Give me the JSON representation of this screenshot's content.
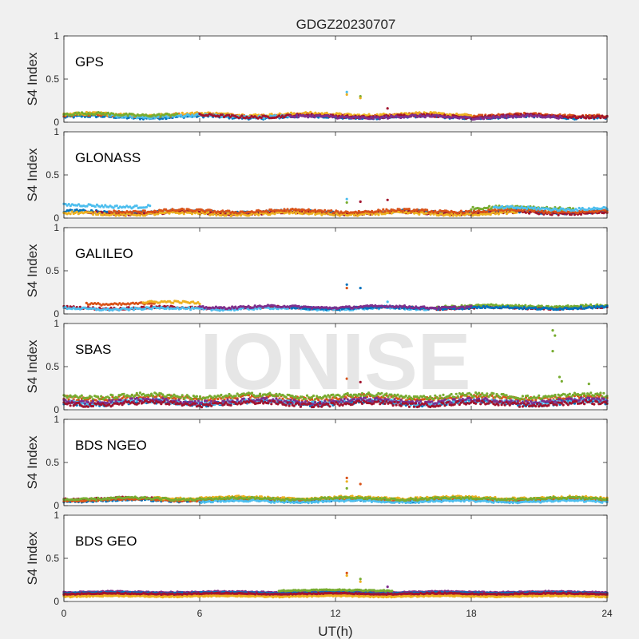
{
  "chart_data": {
    "type": "scatter",
    "title": "GDGZ20230707",
    "xlabel": "UT(h)",
    "ylabel": "S4 Index",
    "xlim": [
      0,
      24
    ],
    "ylim": [
      0,
      1
    ],
    "xticks": [
      "0",
      "6",
      "12",
      "18",
      "24"
    ],
    "yticks": [
      "0",
      "0.5",
      "1"
    ],
    "watermark": "IONISE",
    "series_colors": [
      "#0072BD",
      "#D95319",
      "#EDB120",
      "#7E2F8E",
      "#77AC30",
      "#4DBEEE",
      "#A2142F"
    ],
    "panels": [
      {
        "label": "GPS",
        "baseline": 0.07,
        "spread": 0.03,
        "tracks": [
          {
            "color": "#0072BD",
            "x_start": 0.0,
            "x_end": 24.0,
            "level": 0.06
          },
          {
            "color": "#D95319",
            "x_start": 0.0,
            "x_end": 24.0,
            "level": 0.08
          },
          {
            "color": "#EDB120",
            "x_start": 0.0,
            "x_end": 18.0,
            "level": 0.09
          },
          {
            "color": "#4DBEEE",
            "x_start": 2.0,
            "x_end": 10.0,
            "level": 0.07
          },
          {
            "color": "#77AC30",
            "x_start": 0.0,
            "x_end": 5.0,
            "level": 0.09
          },
          {
            "color": "#A2142F",
            "x_start": 6.0,
            "x_end": 24.0,
            "level": 0.07
          },
          {
            "color": "#7E2F8E",
            "x_start": 10.0,
            "x_end": 22.0,
            "level": 0.06
          }
        ],
        "spikes": [
          {
            "x": 12.5,
            "y": 0.35,
            "color": "#4DBEEE"
          },
          {
            "x": 12.5,
            "y": 0.32,
            "color": "#EDB120"
          },
          {
            "x": 13.1,
            "y": 0.3,
            "color": "#77AC30"
          },
          {
            "x": 13.1,
            "y": 0.28,
            "color": "#EDB120"
          },
          {
            "x": 14.3,
            "y": 0.16,
            "color": "#A2142F"
          }
        ]
      },
      {
        "label": "GLONASS",
        "baseline": 0.08,
        "spread": 0.03,
        "tracks": [
          {
            "color": "#4DBEEE",
            "x_start": 0.0,
            "x_end": 3.8,
            "level": 0.14
          },
          {
            "color": "#0072BD",
            "x_start": 0.0,
            "x_end": 24.0,
            "level": 0.07
          },
          {
            "color": "#A2142F",
            "x_start": 1.0,
            "x_end": 24.0,
            "level": 0.06
          },
          {
            "color": "#EDB120",
            "x_start": 0.0,
            "x_end": 20.0,
            "level": 0.05
          },
          {
            "color": "#D95319",
            "x_start": 2.0,
            "x_end": 24.0,
            "level": 0.08
          },
          {
            "color": "#77AC30",
            "x_start": 18.0,
            "x_end": 22.5,
            "level": 0.12
          },
          {
            "color": "#4DBEEE",
            "x_start": 19.0,
            "x_end": 24.0,
            "level": 0.11
          }
        ],
        "spikes": [
          {
            "x": 12.5,
            "y": 0.22,
            "color": "#4DBEEE"
          },
          {
            "x": 12.5,
            "y": 0.18,
            "color": "#77AC30"
          },
          {
            "x": 13.1,
            "y": 0.19,
            "color": "#A2142F"
          },
          {
            "x": 14.3,
            "y": 0.21,
            "color": "#A2142F"
          }
        ]
      },
      {
        "label": "GALILEO",
        "baseline": 0.08,
        "spread": 0.025,
        "tracks": [
          {
            "color": "#D95319",
            "x_start": 1.0,
            "x_end": 4.0,
            "level": 0.12
          },
          {
            "color": "#EDB120",
            "x_start": 3.5,
            "x_end": 6.0,
            "level": 0.13
          },
          {
            "color": "#A2142F",
            "x_start": 0.0,
            "x_end": 24.0,
            "level": 0.07
          },
          {
            "color": "#4DBEEE",
            "x_start": 0.0,
            "x_end": 16.0,
            "level": 0.06
          },
          {
            "color": "#77AC30",
            "x_start": 16.5,
            "x_end": 24.0,
            "level": 0.09
          },
          {
            "color": "#0072BD",
            "x_start": 10.0,
            "x_end": 24.0,
            "level": 0.07
          },
          {
            "color": "#7E2F8E",
            "x_start": 6.0,
            "x_end": 18.0,
            "level": 0.08
          }
        ],
        "spikes": [
          {
            "x": 12.5,
            "y": 0.34,
            "color": "#0072BD"
          },
          {
            "x": 12.5,
            "y": 0.3,
            "color": "#D95319"
          },
          {
            "x": 13.1,
            "y": 0.3,
            "color": "#0072BD"
          },
          {
            "x": 14.3,
            "y": 0.14,
            "color": "#4DBEEE"
          }
        ]
      },
      {
        "label": "SBAS",
        "baseline": 0.12,
        "spread": 0.045,
        "tracks": [
          {
            "color": "#D95319",
            "x_start": 0.0,
            "x_end": 24.0,
            "level": 0.14
          },
          {
            "color": "#77AC30",
            "x_start": 0.0,
            "x_end": 24.0,
            "level": 0.16
          },
          {
            "color": "#0072BD",
            "x_start": 0.0,
            "x_end": 24.0,
            "level": 0.08
          },
          {
            "color": "#4DBEEE",
            "x_start": 0.0,
            "x_end": 24.0,
            "level": 0.09
          },
          {
            "color": "#7E2F8E",
            "x_start": 0.0,
            "x_end": 24.0,
            "level": 0.1
          },
          {
            "color": "#A2142F",
            "x_start": 0.0,
            "x_end": 24.0,
            "level": 0.07
          }
        ],
        "spikes": [
          {
            "x": 21.6,
            "y": 0.92,
            "color": "#77AC30"
          },
          {
            "x": 21.7,
            "y": 0.86,
            "color": "#77AC30"
          },
          {
            "x": 21.6,
            "y": 0.68,
            "color": "#77AC30"
          },
          {
            "x": 21.9,
            "y": 0.38,
            "color": "#77AC30"
          },
          {
            "x": 22.0,
            "y": 0.33,
            "color": "#77AC30"
          },
          {
            "x": 23.2,
            "y": 0.3,
            "color": "#77AC30"
          },
          {
            "x": 12.5,
            "y": 0.36,
            "color": "#D95319"
          },
          {
            "x": 13.1,
            "y": 0.32,
            "color": "#A2142F"
          }
        ]
      },
      {
        "label": "BDS NGEO",
        "baseline": 0.07,
        "spread": 0.025,
        "tracks": [
          {
            "color": "#0072BD",
            "x_start": 0.0,
            "x_end": 24.0,
            "level": 0.06
          },
          {
            "color": "#A2142F",
            "x_start": 0.0,
            "x_end": 10.0,
            "level": 0.08
          },
          {
            "color": "#D95319",
            "x_start": 0.0,
            "x_end": 24.0,
            "level": 0.07
          },
          {
            "color": "#EDB120",
            "x_start": 4.0,
            "x_end": 24.0,
            "level": 0.09
          },
          {
            "color": "#4DBEEE",
            "x_start": 6.0,
            "x_end": 24.0,
            "level": 0.05
          },
          {
            "color": "#77AC30",
            "x_start": 0.0,
            "x_end": 24.0,
            "level": 0.08
          }
        ],
        "spikes": [
          {
            "x": 12.5,
            "y": 0.32,
            "color": "#D95319"
          },
          {
            "x": 12.5,
            "y": 0.28,
            "color": "#EDB120"
          },
          {
            "x": 13.1,
            "y": 0.25,
            "color": "#D95319"
          },
          {
            "x": 12.5,
            "y": 0.2,
            "color": "#77AC30"
          }
        ]
      },
      {
        "label": "BDS GEO",
        "baseline": 0.1,
        "spread": 0.012,
        "tracks": [
          {
            "color": "#7E2F8E",
            "x_start": 0.0,
            "x_end": 24.0,
            "level": 0.11
          },
          {
            "color": "#0072BD",
            "x_start": 0.0,
            "x_end": 24.0,
            "level": 0.1
          },
          {
            "color": "#D95319",
            "x_start": 0.0,
            "x_end": 24.0,
            "level": 0.08
          },
          {
            "color": "#EDB120",
            "x_start": 0.0,
            "x_end": 24.0,
            "level": 0.06
          },
          {
            "color": "#77AC30",
            "x_start": 9.5,
            "x_end": 14.5,
            "level": 0.13
          },
          {
            "color": "#A2142F",
            "x_start": 0.0,
            "x_end": 24.0,
            "level": 0.09
          }
        ],
        "spikes": [
          {
            "x": 12.5,
            "y": 0.33,
            "color": "#D95319"
          },
          {
            "x": 12.5,
            "y": 0.3,
            "color": "#EDB120"
          },
          {
            "x": 13.1,
            "y": 0.26,
            "color": "#77AC30"
          },
          {
            "x": 13.1,
            "y": 0.23,
            "color": "#EDB120"
          },
          {
            "x": 14.3,
            "y": 0.17,
            "color": "#7E2F8E"
          }
        ]
      }
    ]
  }
}
